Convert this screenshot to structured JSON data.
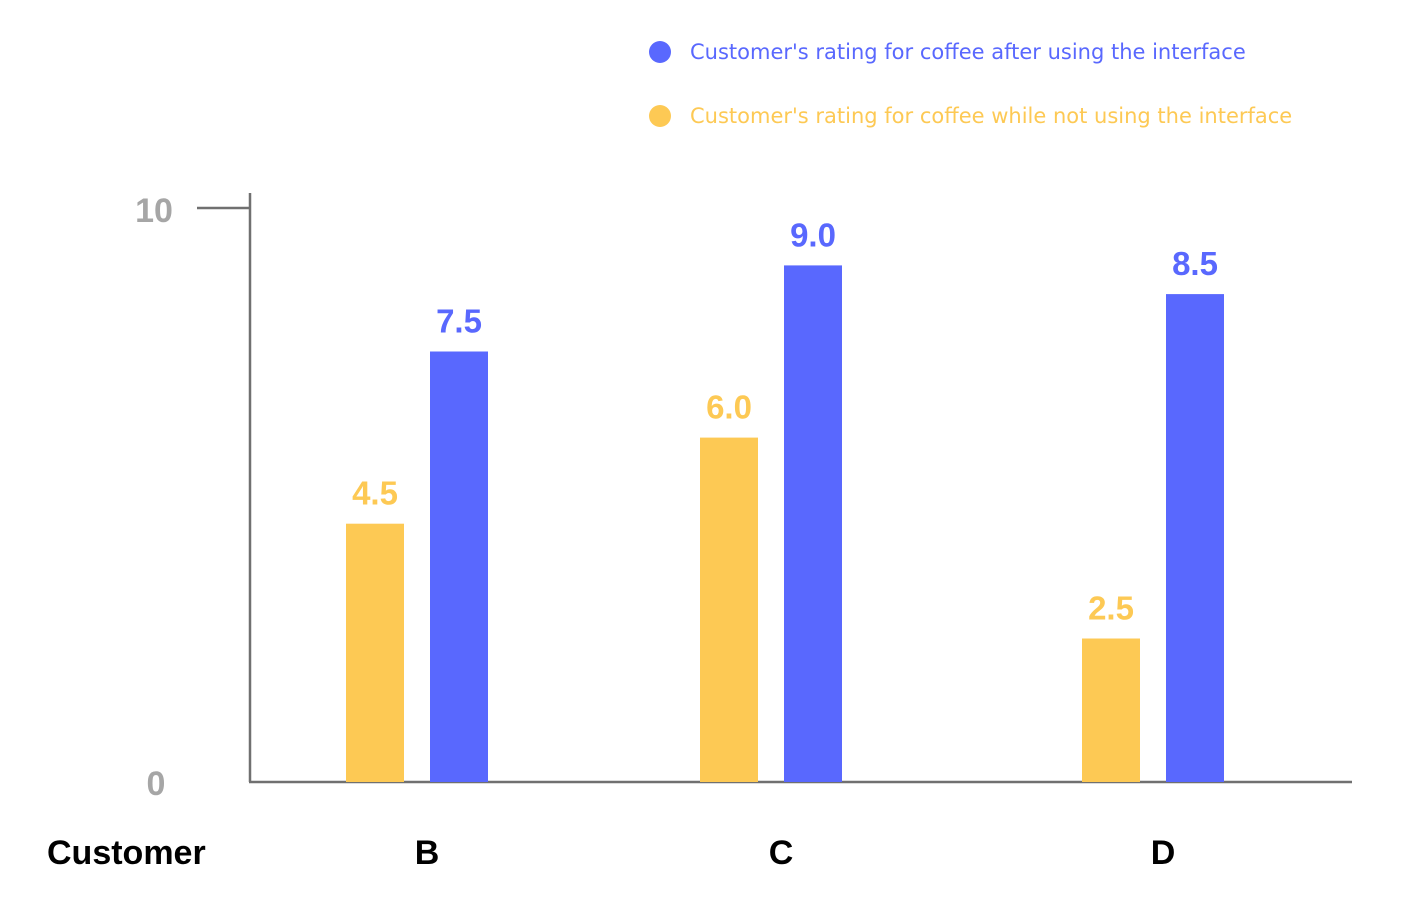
{
  "chart_data": {
    "type": "bar",
    "xlabel": "Customer",
    "categories": [
      "B",
      "C",
      "D"
    ],
    "ylim": [
      0,
      10
    ],
    "yticks": [
      "0",
      "10"
    ],
    "grid": false,
    "legend_position": "top-right",
    "series": [
      {
        "name": "Customer's rating for coffee while not using the interface",
        "color": "#fdc954",
        "values": [
          4.5,
          6.0,
          2.5
        ],
        "labels": [
          "4.5",
          "6.0",
          "2.5"
        ]
      },
      {
        "name": "Customer's rating for coffee after using the interface",
        "color": "#5968fe",
        "values": [
          7.5,
          9.0,
          8.5
        ],
        "labels": [
          "7.5",
          "9.0",
          "8.5"
        ]
      }
    ],
    "legend_order": [
      1,
      0
    ],
    "axis_color": "#707070",
    "tick_color": "#a6a6a6"
  }
}
